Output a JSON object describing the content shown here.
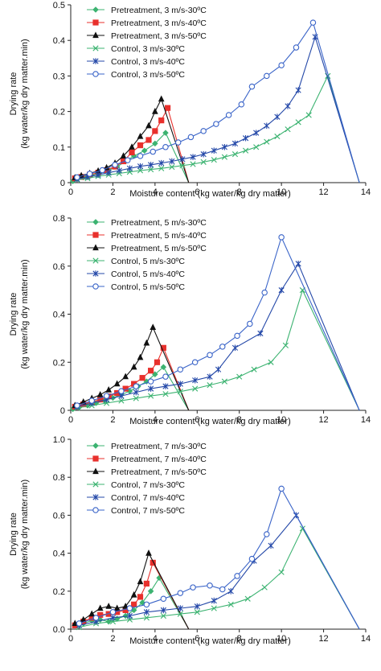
{
  "chart_data": [
    {
      "type": "line",
      "xlabel": "Moisture content (kg water/kg dry matter)",
      "ylabel": "Drying rate (kg water/kg dry matter.min)",
      "xlim": [
        0,
        14
      ],
      "ylim": [
        0,
        0.5
      ],
      "xticks": [
        "0",
        "2",
        "4",
        "6",
        "8",
        "10",
        "12",
        "14"
      ],
      "yticks": [
        "0",
        "0.1",
        "0.2",
        "0.3",
        "0.4",
        "0.5"
      ],
      "legend_position": "top-left",
      "grid": false,
      "series": [
        {
          "name": "Pretreatment, 3 m/s-30ºC",
          "color": "#3cb371",
          "marker": "diamond",
          "x": [
            0.1,
            0.3,
            0.6,
            1.0,
            1.4,
            1.8,
            2.2,
            2.6,
            3.0,
            3.5,
            4.0,
            4.5,
            5.6
          ],
          "y": [
            0.004,
            0.01,
            0.015,
            0.022,
            0.03,
            0.036,
            0.045,
            0.06,
            0.075,
            0.09,
            0.11,
            0.14,
            0.0
          ]
        },
        {
          "name": "Pretreatment, 3 m/s-40ºC",
          "color": "#e8302c",
          "marker": "square",
          "x": [
            0.2,
            0.5,
            0.9,
            1.3,
            1.7,
            2.1,
            2.5,
            2.9,
            3.3,
            3.7,
            4.0,
            4.3,
            4.6,
            5.6
          ],
          "y": [
            0.012,
            0.016,
            0.022,
            0.028,
            0.035,
            0.045,
            0.06,
            0.085,
            0.105,
            0.12,
            0.145,
            0.175,
            0.21,
            0.0
          ]
        },
        {
          "name": "Pretreatment, 3 m/s-50ºC",
          "color": "#111111",
          "marker": "triangle",
          "x": [
            0.2,
            0.5,
            0.9,
            1.3,
            1.7,
            2.1,
            2.5,
            2.9,
            3.3,
            3.7,
            4.0,
            4.3,
            5.6
          ],
          "y": [
            0.014,
            0.02,
            0.026,
            0.033,
            0.042,
            0.055,
            0.075,
            0.1,
            0.13,
            0.16,
            0.2,
            0.235,
            0.0
          ]
        },
        {
          "name": "Control, 3 m/s-30ºC",
          "color": "#3cb371",
          "marker": "x",
          "x": [
            0.3,
            0.8,
            1.3,
            1.8,
            2.3,
            2.8,
            3.3,
            3.8,
            4.3,
            4.8,
            5.3,
            5.8,
            6.3,
            6.8,
            7.3,
            7.8,
            8.3,
            8.8,
            9.3,
            9.8,
            10.3,
            10.8,
            11.3,
            12.2,
            13.7
          ],
          "y": [
            0.008,
            0.012,
            0.018,
            0.022,
            0.026,
            0.03,
            0.034,
            0.037,
            0.04,
            0.044,
            0.048,
            0.052,
            0.058,
            0.064,
            0.072,
            0.08,
            0.09,
            0.1,
            0.115,
            0.13,
            0.15,
            0.17,
            0.19,
            0.3,
            0.0
          ]
        },
        {
          "name": "Control, 3 m/s-40ºC",
          "color": "#2448a8",
          "marker": "star",
          "x": [
            0.3,
            0.8,
            1.3,
            1.8,
            2.3,
            2.8,
            3.3,
            3.8,
            4.3,
            4.8,
            5.3,
            5.8,
            6.3,
            6.8,
            7.3,
            7.8,
            8.3,
            8.8,
            9.3,
            9.8,
            10.3,
            10.8,
            11.6,
            13.7
          ],
          "y": [
            0.01,
            0.016,
            0.022,
            0.028,
            0.034,
            0.04,
            0.046,
            0.05,
            0.055,
            0.06,
            0.066,
            0.072,
            0.08,
            0.09,
            0.1,
            0.11,
            0.125,
            0.14,
            0.16,
            0.185,
            0.215,
            0.26,
            0.41,
            0.0
          ]
        },
        {
          "name": "Control, 3 m/s-50ºC",
          "color": "#3a64c8",
          "marker": "circle",
          "x": [
            0.3,
            0.9,
            1.5,
            2.1,
            2.7,
            3.3,
            3.9,
            4.5,
            5.1,
            5.7,
            6.3,
            6.9,
            7.5,
            8.1,
            8.6,
            9.3,
            10.0,
            10.7,
            11.5,
            13.7
          ],
          "y": [
            0.015,
            0.025,
            0.035,
            0.05,
            0.063,
            0.075,
            0.087,
            0.1,
            0.113,
            0.128,
            0.145,
            0.165,
            0.19,
            0.22,
            0.27,
            0.3,
            0.33,
            0.38,
            0.45,
            0.0
          ]
        }
      ]
    },
    {
      "type": "line",
      "xlabel": "Moisture content (kg water/kg dry matter)",
      "ylabel": "Drying rate (kg water/kg dry matter.min)",
      "xlim": [
        0,
        14
      ],
      "ylim": [
        0,
        0.8
      ],
      "xticks": [
        "0",
        "2",
        "4",
        "6",
        "8",
        "10",
        "12",
        "14"
      ],
      "yticks": [
        "0",
        "0.2",
        "0.4",
        "0.6",
        "0.8"
      ],
      "legend_position": "top-left",
      "grid": false,
      "series": [
        {
          "name": "Pretreatment, 5 m/s-30ºC",
          "color": "#3cb371",
          "marker": "diamond",
          "x": [
            0.1,
            0.4,
            0.8,
            1.2,
            1.6,
            2.0,
            2.4,
            2.8,
            3.2,
            3.6,
            4.0,
            4.4,
            5.6
          ],
          "y": [
            0.005,
            0.012,
            0.02,
            0.03,
            0.04,
            0.052,
            0.065,
            0.08,
            0.1,
            0.12,
            0.15,
            0.18,
            0.0
          ]
        },
        {
          "name": "Pretreatment, 5 m/s-40ºC",
          "color": "#e8302c",
          "marker": "square",
          "x": [
            0.2,
            0.6,
            1.0,
            1.4,
            1.8,
            2.2,
            2.6,
            3.0,
            3.4,
            3.8,
            4.1,
            4.4,
            5.6
          ],
          "y": [
            0.015,
            0.025,
            0.035,
            0.045,
            0.058,
            0.072,
            0.09,
            0.11,
            0.135,
            0.165,
            0.2,
            0.26,
            0.0
          ]
        },
        {
          "name": "Pretreatment, 5 m/s-50ºC",
          "color": "#111111",
          "marker": "triangle",
          "x": [
            0.2,
            0.6,
            1.0,
            1.4,
            1.8,
            2.2,
            2.6,
            3.0,
            3.3,
            3.6,
            3.9,
            5.6
          ],
          "y": [
            0.02,
            0.035,
            0.05,
            0.065,
            0.085,
            0.11,
            0.14,
            0.18,
            0.22,
            0.28,
            0.345,
            0.0
          ]
        },
        {
          "name": "Control, 5 m/s-30ºC",
          "color": "#3cb371",
          "marker": "x",
          "x": [
            0.3,
            1.0,
            1.7,
            2.4,
            3.1,
            3.8,
            4.5,
            5.2,
            5.9,
            6.6,
            7.3,
            8.0,
            8.7,
            9.5,
            10.2,
            11.0,
            13.7
          ],
          "y": [
            0.01,
            0.02,
            0.03,
            0.04,
            0.05,
            0.06,
            0.068,
            0.078,
            0.09,
            0.105,
            0.12,
            0.14,
            0.17,
            0.2,
            0.27,
            0.5,
            0.0
          ]
        },
        {
          "name": "Control, 5 m/s-40ºC",
          "color": "#2448a8",
          "marker": "star",
          "x": [
            0.3,
            1.0,
            1.7,
            2.4,
            3.1,
            3.8,
            4.5,
            5.2,
            5.9,
            6.6,
            7.0,
            7.8,
            9.0,
            10.0,
            10.8,
            13.7
          ],
          "y": [
            0.015,
            0.03,
            0.045,
            0.06,
            0.075,
            0.09,
            0.1,
            0.11,
            0.125,
            0.14,
            0.17,
            0.26,
            0.32,
            0.5,
            0.61,
            0.0
          ]
        },
        {
          "name": "Control, 5 m/s-50ºC",
          "color": "#3a64c8",
          "marker": "circle",
          "x": [
            0.3,
            1.0,
            1.7,
            2.4,
            3.1,
            3.8,
            4.5,
            5.2,
            5.9,
            6.6,
            7.2,
            7.9,
            8.5,
            9.2,
            10.0,
            13.7
          ],
          "y": [
            0.02,
            0.04,
            0.06,
            0.08,
            0.1,
            0.12,
            0.14,
            0.17,
            0.2,
            0.23,
            0.265,
            0.31,
            0.36,
            0.49,
            0.72,
            0.0
          ]
        }
      ]
    },
    {
      "type": "line",
      "xlabel": "Moisture content (kg water/kg dry matter)",
      "ylabel": "Drying rate (kg water/kg dry matter.min)",
      "xlim": [
        0,
        14
      ],
      "ylim": [
        0,
        1.0
      ],
      "xticks": [
        "0",
        "2",
        "4",
        "6",
        "8",
        "10",
        "12",
        "14"
      ],
      "yticks": [
        "0.0",
        "0.2",
        "0.4",
        "0.6",
        "0.8",
        "1.0"
      ],
      "legend_position": "top-left",
      "grid": false,
      "series": [
        {
          "name": "Pretreatment, 7 m/s-30ºC",
          "color": "#3cb371",
          "marker": "diamond",
          "x": [
            0.2,
            0.6,
            1.0,
            1.4,
            1.8,
            2.2,
            2.6,
            3.0,
            3.4,
            3.8,
            4.2,
            5.6
          ],
          "y": [
            0.02,
            0.03,
            0.045,
            0.05,
            0.04,
            0.055,
            0.07,
            0.1,
            0.14,
            0.2,
            0.27,
            0.0
          ]
        },
        {
          "name": "Pretreatment, 7 m/s-40ºC",
          "color": "#e8302c",
          "marker": "square",
          "x": [
            0.2,
            0.6,
            1.0,
            1.4,
            1.8,
            2.2,
            2.6,
            3.0,
            3.3,
            3.6,
            3.9,
            5.6
          ],
          "y": [
            0.02,
            0.04,
            0.06,
            0.075,
            0.08,
            0.09,
            0.1,
            0.13,
            0.17,
            0.24,
            0.35,
            0.0
          ]
        },
        {
          "name": "Pretreatment, 7 m/s-50ºC",
          "color": "#111111",
          "marker": "triangle",
          "x": [
            0.2,
            0.6,
            1.0,
            1.4,
            1.8,
            2.2,
            2.6,
            3.0,
            3.3,
            3.7,
            5.6
          ],
          "y": [
            0.03,
            0.05,
            0.08,
            0.11,
            0.12,
            0.11,
            0.12,
            0.18,
            0.25,
            0.4,
            0.0
          ]
        },
        {
          "name": "Control, 7 m/s-30ºC",
          "color": "#3cb371",
          "marker": "x",
          "x": [
            0.4,
            1.2,
            2.0,
            2.8,
            3.6,
            4.4,
            5.2,
            6.0,
            6.8,
            7.6,
            8.4,
            9.2,
            10.0,
            11.0,
            13.7
          ],
          "y": [
            0.01,
            0.03,
            0.04,
            0.05,
            0.06,
            0.07,
            0.08,
            0.09,
            0.11,
            0.13,
            0.16,
            0.22,
            0.3,
            0.53,
            0.0
          ]
        },
        {
          "name": "Control, 7 m/s-40ºC",
          "color": "#2448a8",
          "marker": "star",
          "x": [
            0.4,
            1.2,
            2.0,
            2.8,
            3.6,
            4.4,
            5.2,
            6.0,
            6.8,
            7.6,
            8.7,
            9.5,
            10.7,
            13.7
          ],
          "y": [
            0.02,
            0.04,
            0.06,
            0.07,
            0.09,
            0.1,
            0.11,
            0.12,
            0.15,
            0.2,
            0.36,
            0.44,
            0.6,
            0.0
          ]
        },
        {
          "name": "Control, 7 m/s-50ºC",
          "color": "#3a64c8",
          "marker": "circle",
          "x": [
            0.4,
            1.2,
            2.0,
            2.8,
            3.6,
            4.4,
            5.2,
            5.8,
            6.6,
            7.2,
            7.9,
            8.6,
            9.3,
            10.0,
            13.7
          ],
          "y": [
            0.03,
            0.06,
            0.09,
            0.11,
            0.13,
            0.16,
            0.19,
            0.22,
            0.23,
            0.21,
            0.28,
            0.37,
            0.5,
            0.74,
            0.0
          ]
        }
      ]
    }
  ]
}
